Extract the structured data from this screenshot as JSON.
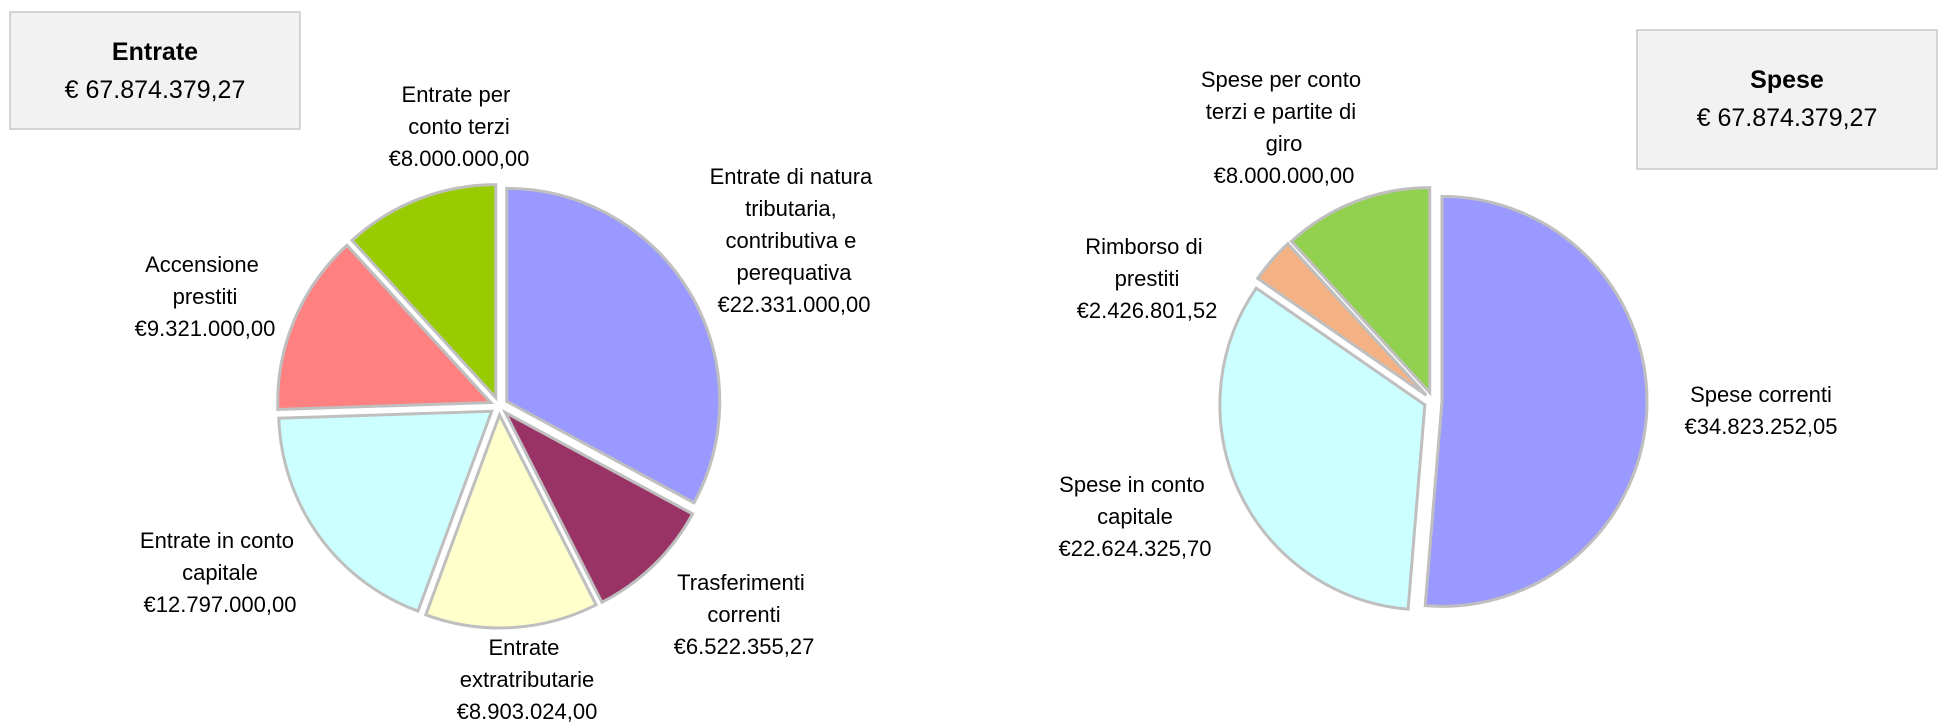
{
  "chart_data": [
    {
      "type": "pie",
      "annotation": {
        "title": "Entrate",
        "text": "€ 67.874.379,27"
      },
      "categories": [
        "Entrate di natura tributaria, contributiva e perequativa",
        "Trasferimenti correnti",
        "Entrate extratributarie",
        "Entrate in conto capitale",
        "Accensione prestiti",
        "Entrate per conto terzi"
      ],
      "values": [
        22331000,
        6522355.27,
        8903024,
        12797000,
        9321000,
        8000000
      ],
      "value_labels": [
        "€22.331.000,00",
        "€6.522.355,27",
        "€8.903.024,00",
        "€12.797.000,00",
        "€9.321.000,00",
        "€8.000.000,00"
      ],
      "colors": [
        "#9999ff",
        "#993366",
        "#ffffcc",
        "#ccffff",
        "#ff8080",
        "#99cc00"
      ]
    },
    {
      "type": "pie",
      "annotation": {
        "title": "Spese",
        "text": "€ 67.874.379,27"
      },
      "categories": [
        "Spese correnti",
        "Spese in conto capitale",
        "Rimborso di prestiti",
        "Spese per conto terzi e partite di giro"
      ],
      "values": [
        34823252.05,
        22624325.7,
        2426801.52,
        8000000
      ],
      "value_labels": [
        "€34.823.252,05",
        "€22.624.325,70",
        "€2.426.801,52",
        "€8.000.000,00"
      ],
      "colors": [
        "#9999ff",
        "#ccffff",
        "#f4b183",
        "#92d050"
      ]
    }
  ]
}
